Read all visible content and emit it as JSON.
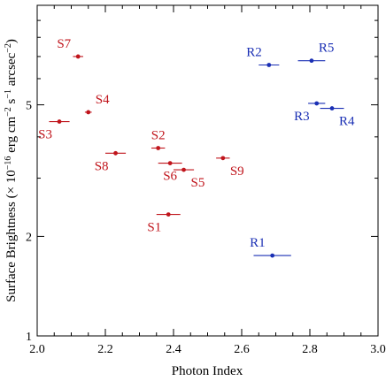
{
  "chart_data": {
    "type": "scatter",
    "title": "",
    "xlabel": "Photon Index",
    "ylabel": {
      "main": "Surface Brightness (× 10",
      "exp1": "−16",
      "mid1": " erg cm",
      "exp2": "−2",
      "mid2": " s",
      "exp3": "−1",
      "mid3": " arcsec",
      "exp4": "−2",
      "end": ")"
    },
    "xlim": [
      2.0,
      3.0
    ],
    "ylim": [
      1,
      10
    ],
    "yscale": "log",
    "x_ticks": [
      {
        "value": 2.0,
        "label": "2.0"
      },
      {
        "value": 2.2,
        "label": "2.2"
      },
      {
        "value": 2.4,
        "label": "2.4"
      },
      {
        "value": 2.6,
        "label": "2.6"
      },
      {
        "value": 2.8,
        "label": "2.8"
      },
      {
        "value": 3.0,
        "label": "3.0"
      }
    ],
    "y_ticks": [
      {
        "value": 1,
        "label": "1"
      },
      {
        "value": 2,
        "label": "2"
      },
      {
        "value": 5,
        "label": "5"
      }
    ],
    "grid": false,
    "series": [
      {
        "color": "#c0151c",
        "points": [
          {
            "label": "S1",
            "x": 2.385,
            "y": 2.33,
            "xerr": 0.035,
            "label_pos": "below-left"
          },
          {
            "label": "S2",
            "x": 2.355,
            "y": 3.7,
            "xerr": 0.02,
            "label_pos": "above"
          },
          {
            "label": "S3",
            "x": 2.065,
            "y": 4.45,
            "xerr": 0.03,
            "label_pos": "below-left"
          },
          {
            "label": "S4",
            "x": 2.15,
            "y": 4.75,
            "xerr": 0.01,
            "label_pos": "above-right"
          },
          {
            "label": "S5",
            "x": 2.43,
            "y": 3.18,
            "xerr": 0.03,
            "label_pos": "below-right"
          },
          {
            "label": "S6",
            "x": 2.39,
            "y": 3.33,
            "xerr": 0.035,
            "label_pos": "below"
          },
          {
            "label": "S7",
            "x": 2.12,
            "y": 7.0,
            "xerr": 0.015,
            "label_pos": "above-left"
          },
          {
            "label": "S8",
            "x": 2.23,
            "y": 3.57,
            "xerr": 0.03,
            "label_pos": "below-left"
          },
          {
            "label": "S9",
            "x": 2.545,
            "y": 3.45,
            "xerr": 0.02,
            "label_pos": "below-right"
          }
        ]
      },
      {
        "color": "#1a2fb4",
        "points": [
          {
            "label": "R1",
            "x": 2.69,
            "y": 1.75,
            "xerr": 0.055,
            "label_pos": "above-left"
          },
          {
            "label": "R2",
            "x": 2.68,
            "y": 6.6,
            "xerr": 0.03,
            "label_pos": "above-left"
          },
          {
            "label": "R3",
            "x": 2.82,
            "y": 5.05,
            "xerr": 0.025,
            "label_pos": "below-left"
          },
          {
            "label": "R4",
            "x": 2.865,
            "y": 4.88,
            "xerr": 0.035,
            "label_pos": "below-right"
          },
          {
            "label": "R5",
            "x": 2.805,
            "y": 6.8,
            "xerr": 0.04,
            "label_pos": "above-right"
          }
        ]
      }
    ]
  }
}
